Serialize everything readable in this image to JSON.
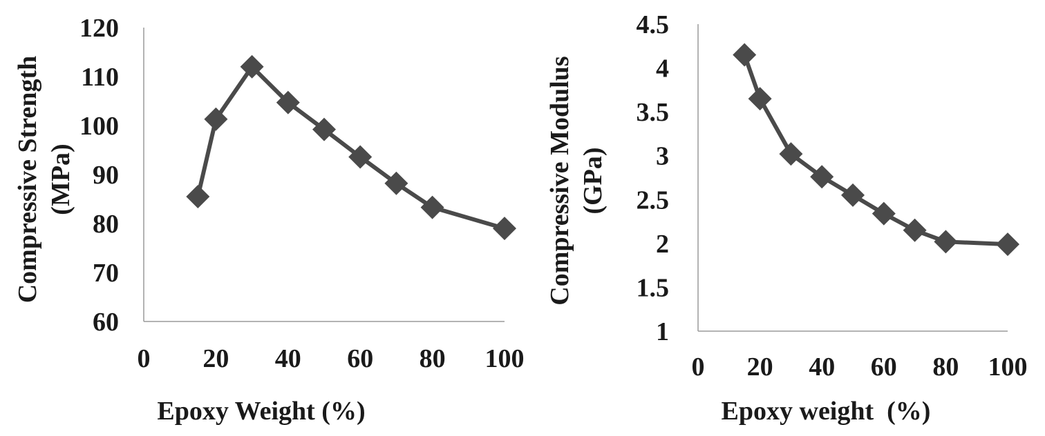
{
  "chart_data": [
    {
      "type": "line",
      "title": "",
      "xlabel": "Epoxy Weight (%)",
      "ylabel_line1": "Compressive Strength",
      "ylabel_line2": "(MPa)",
      "xlim": [
        0,
        100
      ],
      "ylim": [
        60,
        120
      ],
      "xticks": [
        0,
        20,
        40,
        60,
        80,
        100
      ],
      "yticks": [
        60,
        70,
        80,
        90,
        100,
        110,
        120
      ],
      "grid": false,
      "series": [
        {
          "marker": "diamond",
          "color": "#4a4a4a",
          "x": [
            15,
            20,
            30,
            40,
            50,
            60,
            70,
            80,
            100
          ],
          "y": [
            85.5,
            101.3,
            112,
            104.7,
            99.2,
            93.6,
            88.2,
            83.3,
            79
          ]
        }
      ]
    },
    {
      "type": "line",
      "title": "",
      "xlabel": "Epoxy weight  (%)",
      "ylabel_line1": "Compressive Modulus",
      "ylabel_line2": "(GPa)",
      "xlim": [
        0,
        100
      ],
      "ylim": [
        1,
        4.5
      ],
      "xticks": [
        0,
        20,
        40,
        60,
        80,
        100
      ],
      "yticks": [
        1,
        1.5,
        2,
        2.5,
        3,
        3.5,
        4,
        4.5
      ],
      "grid": false,
      "series": [
        {
          "marker": "diamond",
          "color": "#4a4a4a",
          "x": [
            15,
            20,
            30,
            40,
            50,
            60,
            70,
            80,
            100
          ],
          "y": [
            4.15,
            3.65,
            3.02,
            2.76,
            2.55,
            2.34,
            2.15,
            2.02,
            1.99
          ]
        }
      ]
    }
  ]
}
